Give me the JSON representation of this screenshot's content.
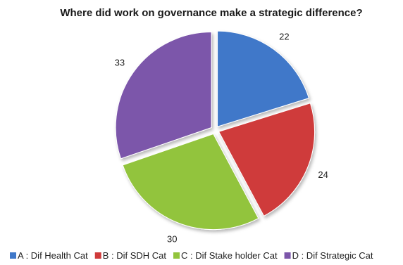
{
  "chart_data": {
    "type": "pie",
    "title": "Where did work on governance make a strategic difference?",
    "categories": [
      "A : Dif Health Cat",
      "B : Dif SDH Cat",
      "C : Dif Stake holder Cat",
      "D : Dif Strategic Cat"
    ],
    "values": [
      22,
      24,
      30,
      33
    ],
    "colors": [
      "#3f78c9",
      "#cf3a3a",
      "#92c43c",
      "#7c56aa"
    ],
    "exploded": true,
    "legend": "bottom"
  }
}
